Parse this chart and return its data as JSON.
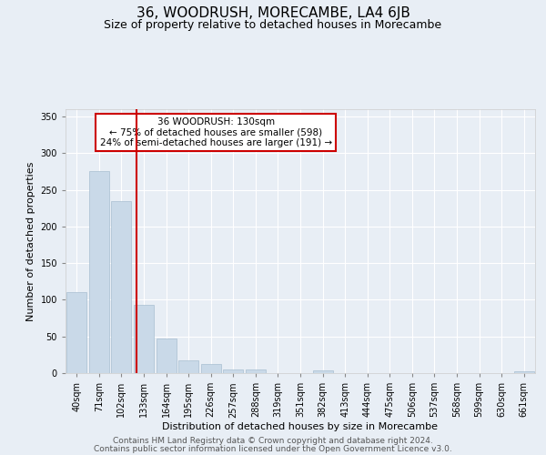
{
  "title": "36, WOODRUSH, MORECAMBE, LA4 6JB",
  "subtitle": "Size of property relative to detached houses in Morecambe",
  "xlabel": "Distribution of detached houses by size in Morecambe",
  "ylabel": "Number of detached properties",
  "bar_labels": [
    "40sqm",
    "71sqm",
    "102sqm",
    "133sqm",
    "164sqm",
    "195sqm",
    "226sqm",
    "257sqm",
    "288sqm",
    "319sqm",
    "351sqm",
    "382sqm",
    "413sqm",
    "444sqm",
    "475sqm",
    "506sqm",
    "537sqm",
    "568sqm",
    "599sqm",
    "630sqm",
    "661sqm"
  ],
  "bar_values": [
    110,
    275,
    235,
    93,
    47,
    18,
    12,
    5,
    5,
    0,
    0,
    4,
    0,
    0,
    0,
    0,
    0,
    0,
    0,
    0,
    3
  ],
  "bar_color": "#c9d9e8",
  "bar_edgecolor": "#a8bfd0",
  "vline_x": 2.67,
  "vline_color": "#cc0000",
  "annotation_text": "36 WOODRUSH: 130sqm\n← 75% of detached houses are smaller (598)\n24% of semi-detached houses are larger (191) →",
  "annotation_box_edgecolor": "#cc0000",
  "annotation_box_facecolor": "#ffffff",
  "ylim": [
    0,
    360
  ],
  "yticks": [
    0,
    50,
    100,
    150,
    200,
    250,
    300,
    350
  ],
  "footer1": "Contains HM Land Registry data © Crown copyright and database right 2024.",
  "footer2": "Contains public sector information licensed under the Open Government Licence v3.0.",
  "background_color": "#e8eef5",
  "plot_background_color": "#e8eef5",
  "title_fontsize": 11,
  "subtitle_fontsize": 9,
  "xlabel_fontsize": 8,
  "ylabel_fontsize": 8,
  "tick_fontsize": 7,
  "footer_fontsize": 6.5,
  "ann_fontsize": 7.5
}
